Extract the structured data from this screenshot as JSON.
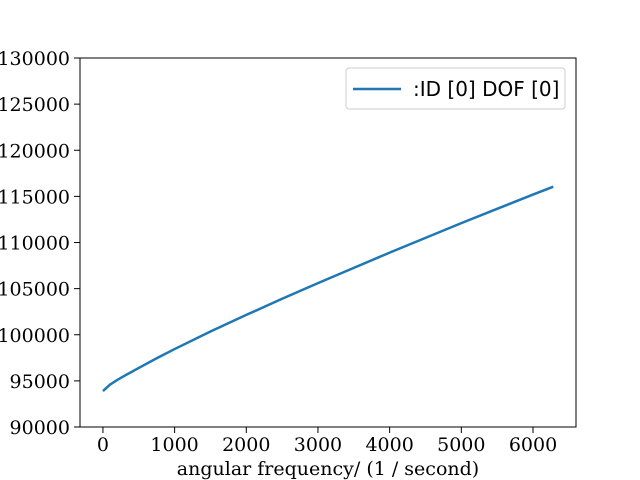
{
  "chart_data": {
    "type": "line",
    "title": "",
    "xlabel": "angular frequency/ (1 / second)",
    "ylabel": "",
    "xlim": [
      -320,
      6600
    ],
    "ylim": [
      90000,
      130000
    ],
    "xticks": [
      0,
      1000,
      2000,
      3000,
      4000,
      5000,
      6000
    ],
    "yticks": [
      90000,
      95000,
      100000,
      105000,
      110000,
      115000,
      120000,
      125000,
      130000
    ],
    "xtick_labels": [
      "0",
      "1000",
      "2000",
      "3000",
      "4000",
      "5000",
      "6000"
    ],
    "ytick_labels": [
      "90000",
      "95000",
      "100000",
      "105000",
      "110000",
      "115000",
      "120000",
      "125000",
      "130000"
    ],
    "grid": false,
    "legend_position": "top-right",
    "series": [
      {
        "name": ":ID [0] DOF [0]",
        "color": "#1f77b4",
        "x": [
          0,
          50,
          100,
          200,
          300,
          500,
          750,
          1000,
          1500,
          2000,
          2500,
          3000,
          3500,
          4000,
          4500,
          5000,
          5500,
          6000,
          6283
        ],
        "y": [
          93900,
          94250,
          94600,
          95100,
          95550,
          96400,
          97450,
          98450,
          100350,
          102150,
          103900,
          105600,
          107250,
          108900,
          110500,
          112100,
          113650,
          115200,
          116050
        ]
      }
    ]
  }
}
